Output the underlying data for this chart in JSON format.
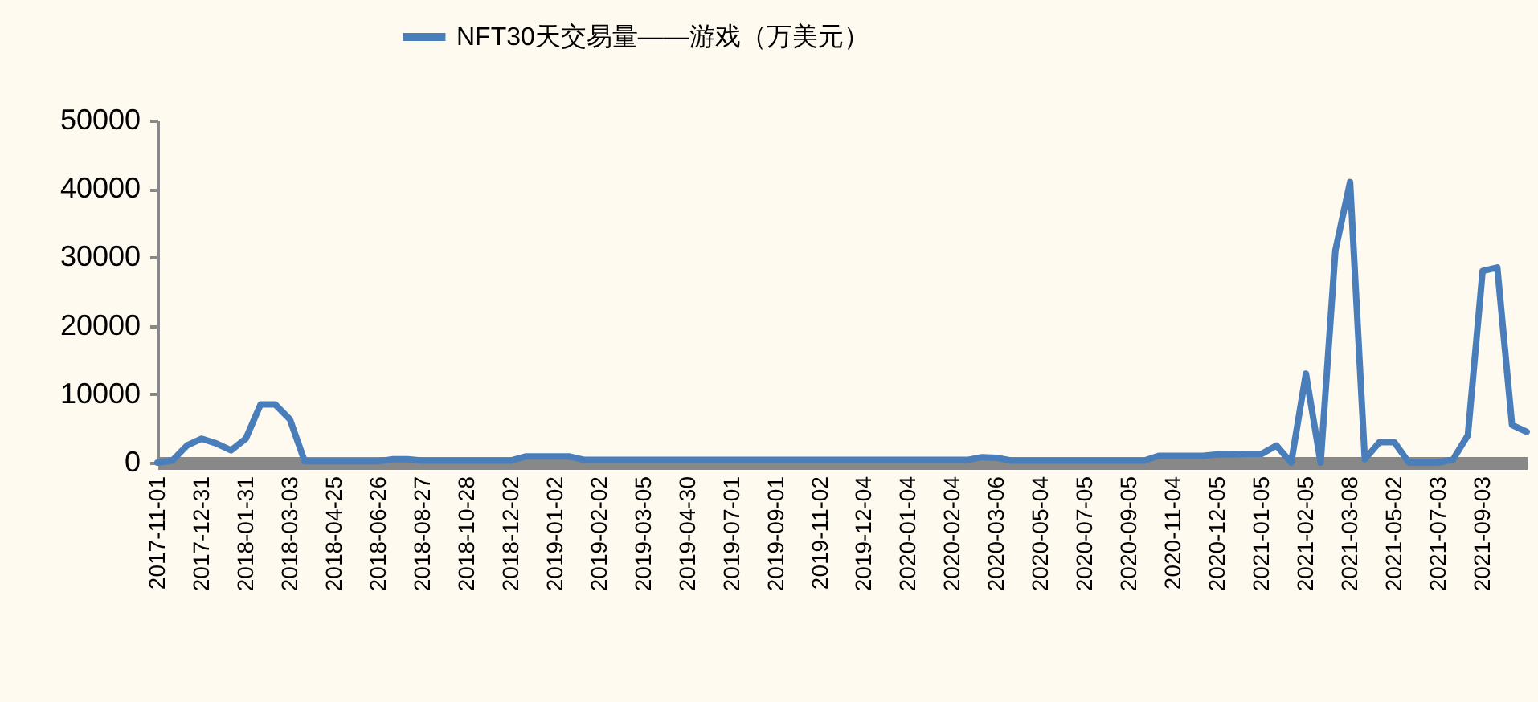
{
  "chart_data": {
    "type": "line",
    "categories": [
      "2017-11-01",
      null,
      null,
      "2017-12-31",
      null,
      null,
      "2018-01-31",
      null,
      null,
      "2018-03-03",
      null,
      null,
      "2018-04-25",
      null,
      null,
      "2018-06-26",
      null,
      null,
      "2018-08-27",
      null,
      null,
      "2018-10-28",
      null,
      null,
      "2018-12-02",
      null,
      null,
      "2019-01-02",
      null,
      null,
      "2019-02-02",
      null,
      null,
      "2019-03-05",
      null,
      null,
      "2019-04-30",
      null,
      null,
      "2019-07-01",
      null,
      null,
      "2019-09-01",
      null,
      null,
      "2019-11-02",
      null,
      null,
      "2019-12-04",
      null,
      null,
      "2020-01-04",
      null,
      null,
      "2020-02-04",
      null,
      null,
      "2020-03-06",
      null,
      null,
      "2020-05-04",
      null,
      null,
      "2020-07-05",
      null,
      null,
      "2020-09-05",
      null,
      null,
      "2020-11-04",
      null,
      null,
      "2020-12-05",
      null,
      null,
      "2021-01-05",
      null,
      null,
      "2021-02-05",
      null,
      null,
      "2021-03-08",
      null,
      null,
      "2021-05-02",
      null,
      null,
      "2021-07-03",
      null,
      null,
      "2021-09-03",
      null,
      null,
      null
    ],
    "series": [
      {
        "name": "NFT30天交易量——游戏（万美元）",
        "color": "#4a7ebb",
        "values": [
          0,
          300,
          2500,
          3500,
          2800,
          1800,
          3500,
          8500,
          8500,
          6300,
          200,
          200,
          200,
          200,
          200,
          200,
          500,
          500,
          300,
          300,
          300,
          300,
          300,
          300,
          300,
          900,
          900,
          900,
          900,
          400,
          400,
          400,
          400,
          400,
          400,
          400,
          400,
          400,
          400,
          400,
          400,
          400,
          400,
          400,
          400,
          400,
          400,
          400,
          400,
          400,
          400,
          400,
          400,
          400,
          400,
          400,
          800,
          700,
          300,
          300,
          300,
          300,
          300,
          300,
          300,
          300,
          300,
          300,
          1000,
          1000,
          1000,
          1000,
          1200,
          1200,
          1300,
          1300,
          2500,
          0,
          13000,
          0,
          31000,
          41000,
          500,
          3000,
          3000,
          0,
          0,
          0,
          500,
          4000,
          28000,
          28500,
          5500,
          4500
        ]
      }
    ],
    "ylim": [
      0,
      50000
    ],
    "yticks": [
      0,
      10000,
      20000,
      30000,
      40000,
      50000
    ],
    "grid": false,
    "legend": "top",
    "marker": "none",
    "line_style": "solid"
  }
}
